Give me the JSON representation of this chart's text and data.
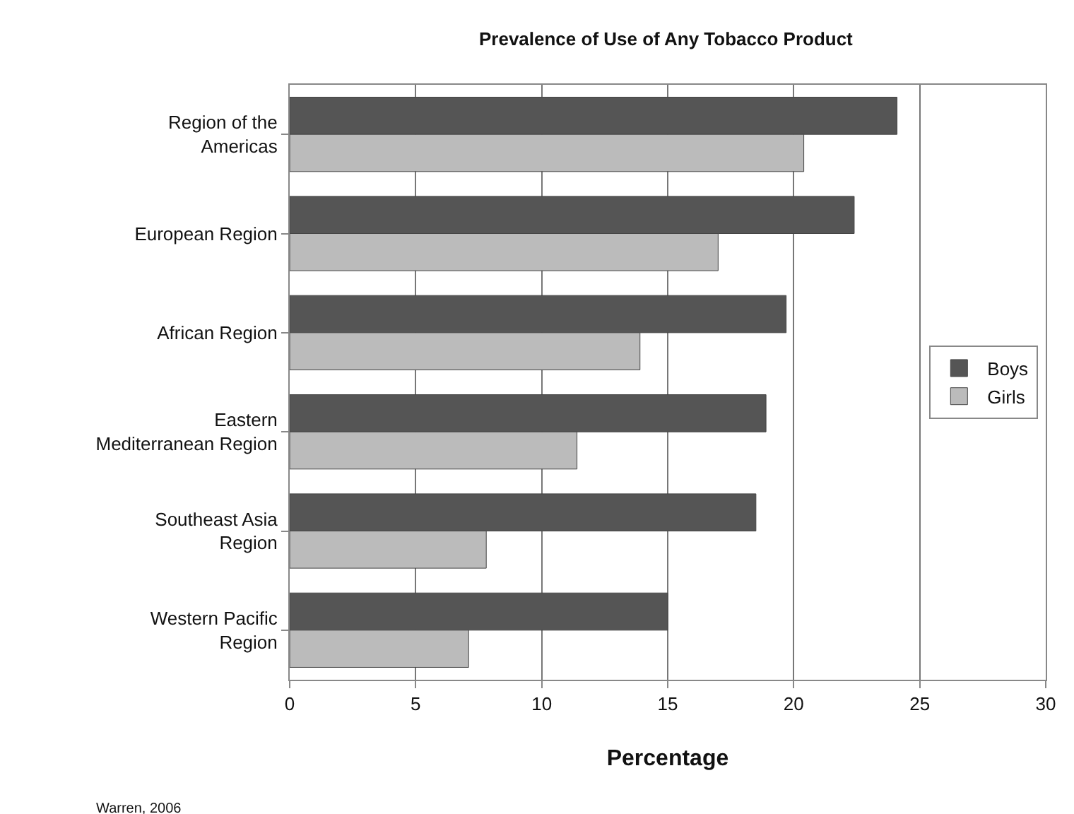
{
  "chart_data": {
    "type": "bar",
    "orientation": "horizontal",
    "title": "Prevalence of Use of Any Tobacco Product",
    "xlabel": "Percentage",
    "categories": [
      "Region of the Americas",
      "European Region",
      "African Region",
      "Eastern Mediterranean Region",
      "Southeast Asia Region",
      "Western Pacific Region"
    ],
    "series": [
      {
        "name": "Boys",
        "color": "#555555",
        "values": [
          24.1,
          22.4,
          19.7,
          18.9,
          18.5,
          15.0
        ]
      },
      {
        "name": "Girls",
        "color": "#bbbbbb",
        "values": [
          20.4,
          17.0,
          13.9,
          11.4,
          7.8,
          7.1
        ]
      }
    ],
    "xlim": [
      0,
      30
    ],
    "xticks": [
      0,
      5,
      10,
      15,
      20,
      25,
      30
    ],
    "grid": "x",
    "legend": "right",
    "annotations": [
      "Warren, 2006"
    ]
  }
}
